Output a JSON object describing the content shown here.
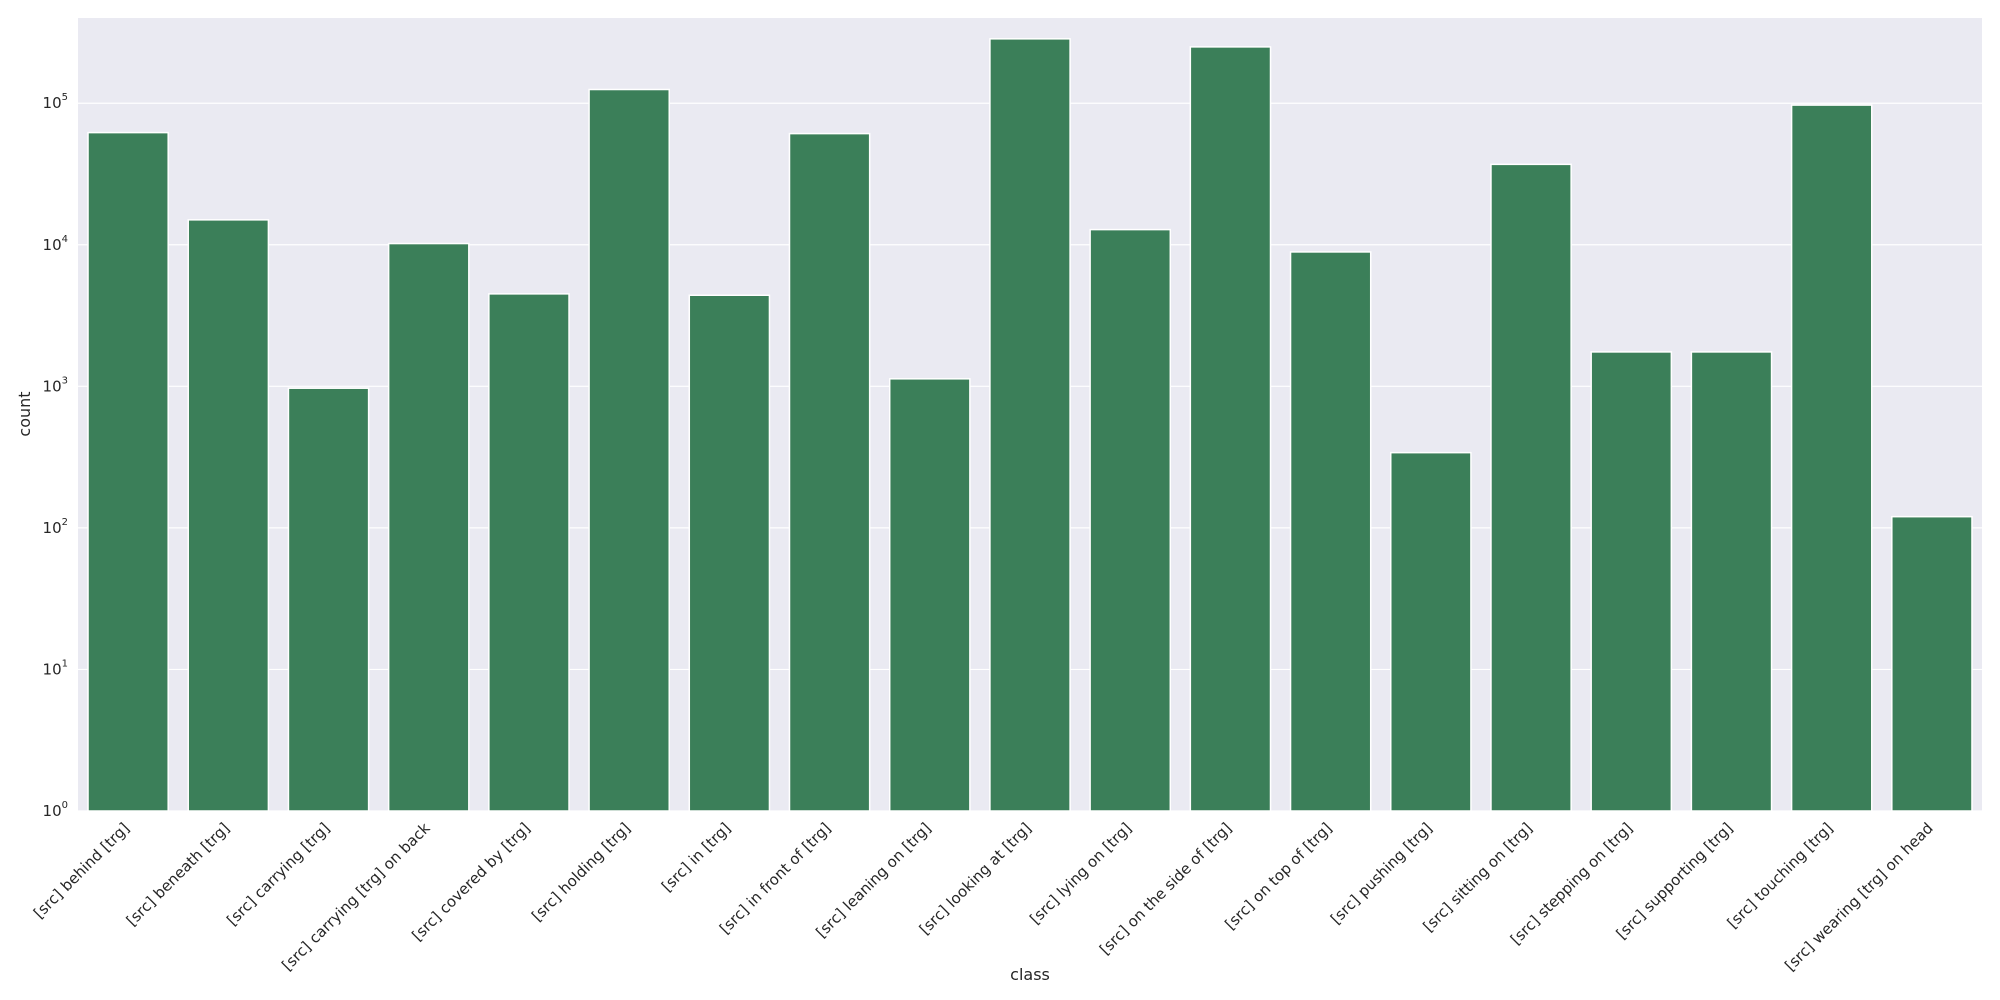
{
  "chart_data": {
    "type": "bar",
    "xlabel": "class",
    "ylabel": "count",
    "yscale": "log",
    "ylim": [
      1,
      400000
    ],
    "yticks": [
      {
        "value": 1,
        "base": "10",
        "exp": "0"
      },
      {
        "value": 10,
        "base": "10",
        "exp": "1"
      },
      {
        "value": 100,
        "base": "10",
        "exp": "2"
      },
      {
        "value": 1000,
        "base": "10",
        "exp": "3"
      },
      {
        "value": 10000,
        "base": "10",
        "exp": "4"
      },
      {
        "value": 100000,
        "base": "10",
        "exp": "5"
      }
    ],
    "grid": true,
    "colors": {
      "bar": "#3b7f59",
      "background": "#eaeaf2",
      "grid": "#ffffff"
    },
    "categories": [
      "[src] behind [trg]",
      "[src] beneath [trg]",
      "[src] carrying [trg]",
      "[src] carrying [trg] on back",
      "[src] covered by [trg]",
      "[src] holding [trg]",
      "[src] in [trg]",
      "[src] in front of [trg]",
      "[src] leaning on [trg]",
      "[src] looking at [trg]",
      "[src] lying on [trg]",
      "[src] on the side of [trg]",
      "[src] on top of [trg]",
      "[src] pushing [trg]",
      "[src] sitting on [trg]",
      "[src] stepping on [trg]",
      "[src] supporting [trg]",
      "[src] touching [trg]",
      "[src] wearing [trg] on head"
    ],
    "values": [
      62000,
      15000,
      970,
      10200,
      4500,
      125000,
      4400,
      61000,
      1130,
      285000,
      12800,
      250000,
      8900,
      340,
      37000,
      1750,
      1750,
      97000,
      120
    ]
  }
}
